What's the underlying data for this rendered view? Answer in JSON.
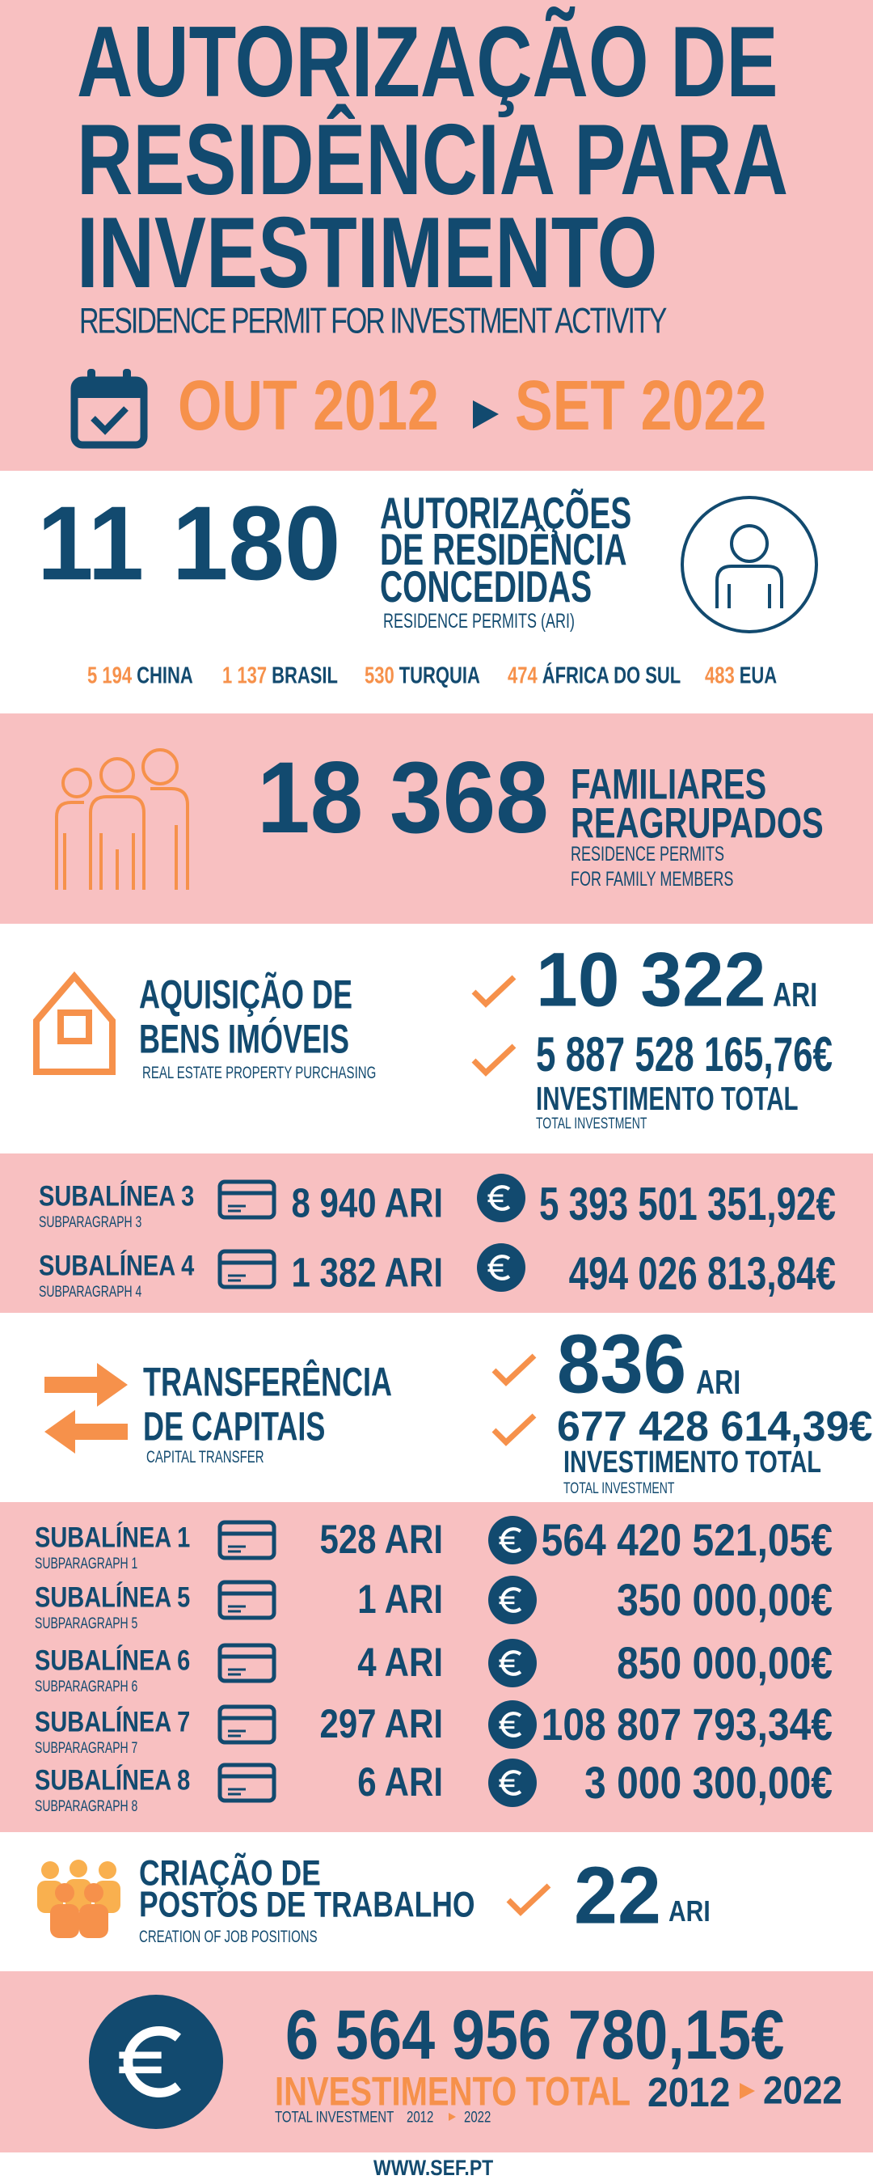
{
  "header": {
    "title_lines": [
      "AUTORIZAÇÃO DE",
      "RESIDÊNCIA PARA",
      "INVESTIMENTO"
    ],
    "subtitle": "RESIDENCE PERMIT FOR INVESTMENT ACTIVITY",
    "period_start": "OUT 2012",
    "period_end": "SET 2022"
  },
  "permits": {
    "total": "11 180",
    "label_lines": [
      "AUTORIZAÇÕES",
      "DE RESIDÊNCIA",
      "CONCEDIDAS"
    ],
    "sublabel": "RESIDENCE PERMITS  (ARI)",
    "countries": [
      {
        "value": "5 194",
        "name": "CHINA"
      },
      {
        "value": "1 137",
        "name": "BRASIL"
      },
      {
        "value": "530",
        "name": "TURQUIA"
      },
      {
        "value": "474",
        "name": "ÁFRICA DO SUL"
      },
      {
        "value": "483",
        "name": "EUA"
      }
    ]
  },
  "family": {
    "total": "18 368",
    "label_lines": [
      "FAMILIARES",
      "REAGRUPADOS"
    ],
    "sublabel_lines": [
      "RESIDENCE PERMITS",
      "FOR FAMILY MEMBERS"
    ]
  },
  "real_estate": {
    "title_lines": [
      "AQUISIÇÃO DE",
      "BENS IMÓVEIS"
    ],
    "subtitle": "REAL ESTATE PROPERTY PURCHASING",
    "ari": "10 322",
    "ari_unit": "ARI",
    "investment": "5 887 528 165,76€",
    "investment_label": "INVESTIMENTO TOTAL",
    "investment_sublabel": "TOTAL INVESTMENT",
    "subparagraphs": [
      {
        "name": "SUBALÍNEA 3",
        "sub": "SUBPARAGRAPH 3",
        "ari": "8 940 ARI",
        "amount": "5 393 501 351,92€"
      },
      {
        "name": "SUBALÍNEA 4",
        "sub": "SUBPARAGRAPH 4",
        "ari": "1 382 ARI",
        "amount": "494 026 813,84€"
      }
    ]
  },
  "capital_transfer": {
    "title_lines": [
      "TRANSFERÊNCIA",
      "DE CAPITAIS"
    ],
    "subtitle": "CAPITAL TRANSFER",
    "ari": "836",
    "ari_unit": "ARI",
    "investment": "677 428 614,39€",
    "investment_label": "INVESTIMENTO TOTAL",
    "investment_sublabel": "TOTAL INVESTMENT",
    "subparagraphs": [
      {
        "name": "SUBALÍNEA 1",
        "sub": "SUBPARAGRAPH 1",
        "ari": "528 ARI",
        "amount": "564 420 521,05€"
      },
      {
        "name": "SUBALÍNEA 5",
        "sub": "SUBPARAGRAPH 5",
        "ari": "1 ARI",
        "amount": "350 000,00€"
      },
      {
        "name": "SUBALÍNEA 6",
        "sub": "SUBPARAGRAPH 6",
        "ari": "4 ARI",
        "amount": "850 000,00€"
      },
      {
        "name": "SUBALÍNEA 7",
        "sub": "SUBPARAGRAPH 7",
        "ari": "297 ARI",
        "amount": "108 807 793,34€"
      },
      {
        "name": "SUBALÍNEA 8",
        "sub": "SUBPARAGRAPH 8",
        "ari": "6 ARI",
        "amount": "3 000 300,00€"
      }
    ]
  },
  "jobs": {
    "title_lines": [
      "CRIAÇÃO DE",
      "POSTOS DE TRABALHO"
    ],
    "subtitle": "CREATION OF JOB POSITIONS",
    "ari": "22",
    "ari_unit": "ARI"
  },
  "total": {
    "amount": "6 564 956 780,15€",
    "label": "INVESTIMENTO TOTAL",
    "period_start": "2012",
    "period_end": "2022",
    "sublabel": "TOTAL INVESTMENT",
    "sub_period_start": "2012",
    "sub_period_end": "2022"
  },
  "footer": "WWW.SEF.PT"
}
